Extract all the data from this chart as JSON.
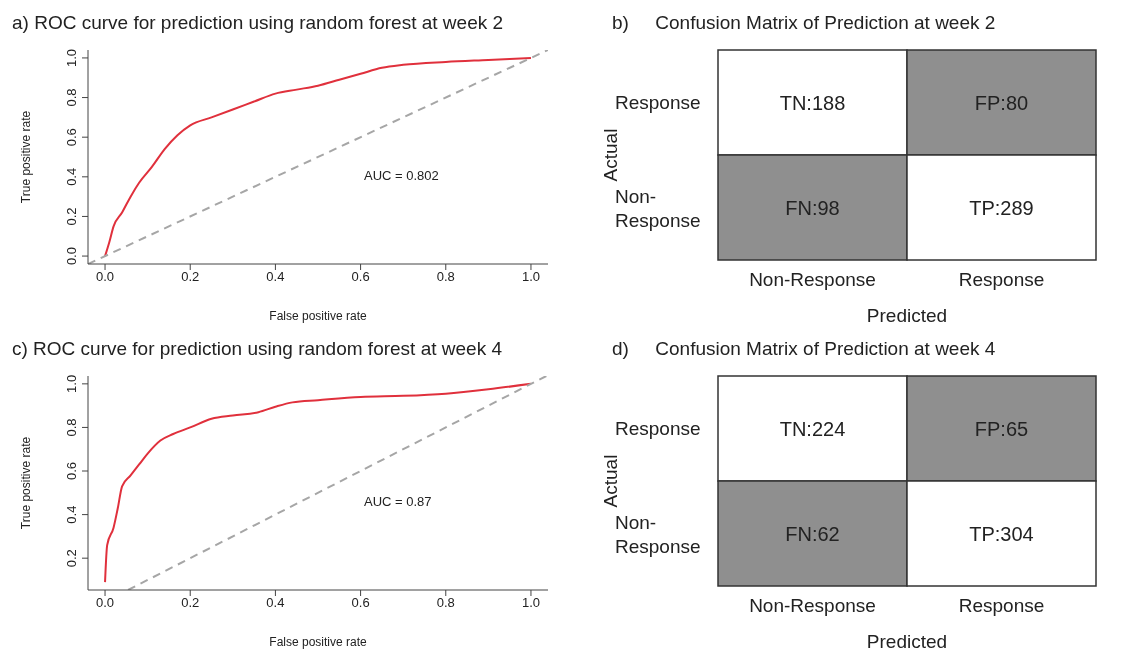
{
  "chart_data": [
    {
      "type": "line",
      "title": "a)  ROC curve for prediction using random forest at week 2",
      "xlabel": "False positive rate",
      "ylabel": "True positive rate",
      "annotations": [
        "AUC = 0.802"
      ],
      "xlim": [
        -0.04,
        1.04
      ],
      "ylim": [
        -0.04,
        1.04
      ],
      "xticks": [
        {
          "value": 0,
          "label": "0.0"
        },
        {
          "value": 0.2,
          "label": "0.2"
        },
        {
          "value": 0.4,
          "label": "0.4"
        },
        {
          "value": 0.6,
          "label": "0.6"
        },
        {
          "value": 0.8,
          "label": "0.8"
        },
        {
          "value": 1,
          "label": "1.0"
        }
      ],
      "yticks": [
        {
          "value": 0,
          "label": "0.0"
        },
        {
          "value": 0.2,
          "label": "0.2"
        },
        {
          "value": 0.4,
          "label": "0.4"
        },
        {
          "value": 0.6,
          "label": "0.6"
        },
        {
          "value": 0.8,
          "label": "0.8"
        },
        {
          "value": 1,
          "label": "1.0"
        }
      ],
      "marker": "none",
      "series": [
        {
          "color": "#e0303c",
          "line_style": "solid",
          "x": [
            0,
            0.01,
            0.02,
            0.04,
            0.06,
            0.08,
            0.11,
            0.14,
            0.17,
            0.2,
            0.25,
            0.3,
            0.35,
            0.4,
            0.45,
            0.5,
            0.55,
            0.6,
            0.65,
            0.7,
            0.8,
            0.9,
            1.0
          ],
          "values": [
            0,
            0.07,
            0.15,
            0.22,
            0.3,
            0.37,
            0.45,
            0.54,
            0.61,
            0.66,
            0.7,
            0.74,
            0.78,
            0.82,
            0.84,
            0.86,
            0.89,
            0.92,
            0.95,
            0.965,
            0.98,
            0.99,
            1.0
          ]
        },
        {
          "color": "#a6a6a6",
          "line_style": "dashed",
          "x": [
            -0.04,
            1.04
          ],
          "values": [
            -0.04,
            1.04
          ]
        }
      ]
    },
    {
      "type": "heatmap",
      "title": "b)     Confusion Matrix of Prediction at week 2",
      "xlabel": "Predicted",
      "ylabel": "Actual",
      "categories": [
        "Non-Response",
        "Response"
      ],
      "y_categories": [
        "Response",
        "Non-Response"
      ],
      "colors": [
        "#ffffff",
        "#8f8f8f"
      ],
      "cells": [
        [
          188,
          80
        ],
        [
          98,
          289
        ]
      ],
      "cell_labels": [
        [
          "TN:188",
          "FP:80"
        ],
        [
          "FN:98",
          "TP:289"
        ]
      ]
    },
    {
      "type": "line",
      "title": "c)  ROC curve for prediction using random forest at week 4",
      "xlabel": "False positive rate",
      "ylabel": "True positive rate",
      "annotations": [
        "AUC = 0.87"
      ],
      "xlim": [
        -0.04,
        1.04
      ],
      "ylim": [
        0.054,
        1.036
      ],
      "xticks": [
        {
          "value": 0,
          "label": "0.0"
        },
        {
          "value": 0.2,
          "label": "0.2"
        },
        {
          "value": 0.4,
          "label": "0.4"
        },
        {
          "value": 0.6,
          "label": "0.6"
        },
        {
          "value": 0.8,
          "label": "0.8"
        },
        {
          "value": 1,
          "label": "1.0"
        }
      ],
      "yticks": [
        {
          "value": 0.2,
          "label": "0.2"
        },
        {
          "value": 0.4,
          "label": "0.4"
        },
        {
          "value": 0.6,
          "label": "0.6"
        },
        {
          "value": 0.8,
          "label": "0.8"
        },
        {
          "value": 1,
          "label": "1.0"
        }
      ],
      "marker": "none",
      "series": [
        {
          "color": "#e0303c",
          "line_style": "solid",
          "x": [
            0,
            0.005,
            0.02,
            0.03,
            0.04,
            0.06,
            0.08,
            0.1,
            0.13,
            0.16,
            0.2,
            0.25,
            0.3,
            0.36,
            0.4,
            0.44,
            0.5,
            0.6,
            0.7,
            0.8,
            0.9,
            1.0
          ],
          "values": [
            0.09,
            0.26,
            0.34,
            0.43,
            0.53,
            0.58,
            0.63,
            0.68,
            0.74,
            0.77,
            0.8,
            0.84,
            0.855,
            0.87,
            0.895,
            0.915,
            0.925,
            0.94,
            0.945,
            0.955,
            0.975,
            1.0
          ]
        },
        {
          "color": "#a6a6a6",
          "line_style": "dashed",
          "x": [
            0.054,
            1.036
          ],
          "values": [
            0.054,
            1.036
          ]
        }
      ]
    },
    {
      "type": "heatmap",
      "title": "d)     Confusion Matrix of Prediction at week 4",
      "xlabel": "Predicted",
      "ylabel": "Actual",
      "categories": [
        "Non-Response",
        "Response"
      ],
      "y_categories": [
        "Response",
        "Non-Response"
      ],
      "colors": [
        "#ffffff",
        "#8f8f8f"
      ],
      "cells": [
        [
          224,
          65
        ],
        [
          62,
          304
        ]
      ],
      "cell_labels": [
        [
          "TN:224",
          "FP:65"
        ],
        [
          "FN:62",
          "TP:304"
        ]
      ]
    }
  ]
}
